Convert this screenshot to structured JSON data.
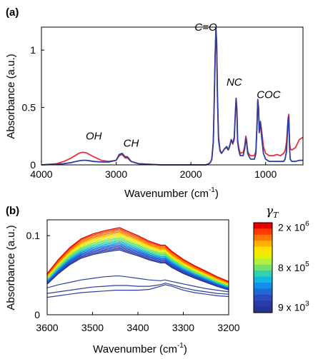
{
  "chart_data": [
    {
      "panel": "(a)",
      "type": "line",
      "xlabel": "Wavenumber (cm",
      "xlabel_sup": "-1",
      "xlabel_close": ")",
      "ylabel": "Absorbance (a.u.)",
      "xlim": [
        4000,
        500
      ],
      "ylim": [
        0,
        1.2
      ],
      "x_ticks": [
        4000,
        3000,
        2000,
        1000
      ],
      "x_tick_labels": [
        "4000",
        "3000",
        "2000",
        "1000"
      ],
      "y_ticks": [
        0,
        0.5,
        1
      ],
      "y_tick_labels": [
        "0",
        "0.5",
        "1"
      ],
      "annotations": [
        {
          "text": "OH",
          "x": 3300,
          "y": 0.22
        },
        {
          "text": "CH",
          "x": 2800,
          "y": 0.16
        },
        {
          "text": "C=O",
          "x": 1800,
          "y": 1.17
        },
        {
          "text": "NC",
          "x": 1420,
          "y": 0.69
        },
        {
          "text": "COC",
          "x": 960,
          "y": 0.58
        }
      ],
      "series": [
        {
          "color": "#e8303a",
          "x": [
            4000,
            3800,
            3700,
            3600,
            3500,
            3450,
            3400,
            3300,
            3200,
            3100,
            3000,
            2960,
            2920,
            2880,
            2850,
            2800,
            2700,
            2400,
            2000,
            1800,
            1760,
            1740,
            1720,
            1700,
            1690,
            1675,
            1665,
            1655,
            1645,
            1630,
            1610,
            1590,
            1570,
            1550,
            1520,
            1500,
            1480,
            1460,
            1450,
            1440,
            1420,
            1405,
            1395,
            1385,
            1375,
            1360,
            1340,
            1300,
            1280,
            1265,
            1255,
            1240,
            1220,
            1200,
            1180,
            1150,
            1130,
            1115,
            1105,
            1095,
            1085,
            1070,
            1050,
            1030,
            1000,
            950,
            900,
            850,
            800,
            760,
            740,
            720,
            700,
            690,
            680,
            670,
            650,
            600,
            550,
            500
          ],
          "y": [
            0.0,
            0.01,
            0.03,
            0.06,
            0.1,
            0.11,
            0.105,
            0.07,
            0.04,
            0.03,
            0.04,
            0.08,
            0.09,
            0.06,
            0.06,
            0.03,
            0.01,
            0.0,
            0.0,
            0.0,
            0.01,
            0.02,
            0.05,
            0.2,
            0.5,
            0.95,
            1.17,
            1.05,
            0.6,
            0.25,
            0.13,
            0.1,
            0.12,
            0.14,
            0.15,
            0.13,
            0.16,
            0.22,
            0.2,
            0.18,
            0.22,
            0.45,
            0.57,
            0.48,
            0.22,
            0.15,
            0.1,
            0.11,
            0.16,
            0.25,
            0.22,
            0.12,
            0.09,
            0.08,
            0.08,
            0.08,
            0.12,
            0.35,
            0.55,
            0.5,
            0.3,
            0.38,
            0.28,
            0.16,
            0.1,
            0.08,
            0.08,
            0.09,
            0.08,
            0.1,
            0.12,
            0.2,
            0.4,
            0.44,
            0.2,
            0.14,
            0.13,
            0.15,
            0.22,
            0.24
          ]
        },
        {
          "color": "#2d3f9e",
          "x": [
            4000,
            3800,
            3700,
            3600,
            3500,
            3450,
            3400,
            3300,
            3200,
            3100,
            3000,
            2960,
            2920,
            2880,
            2850,
            2800,
            2700,
            2400,
            2000,
            1800,
            1760,
            1740,
            1720,
            1700,
            1690,
            1675,
            1665,
            1655,
            1645,
            1630,
            1610,
            1590,
            1570,
            1550,
            1520,
            1500,
            1480,
            1460,
            1450,
            1440,
            1420,
            1405,
            1395,
            1385,
            1375,
            1360,
            1340,
            1300,
            1280,
            1265,
            1255,
            1240,
            1220,
            1200,
            1180,
            1150,
            1130,
            1115,
            1105,
            1095,
            1085,
            1070,
            1050,
            1030,
            1000,
            950,
            900,
            850,
            800,
            760,
            740,
            720,
            700,
            690,
            680,
            670,
            650,
            600,
            550,
            500
          ],
          "y": [
            0.0,
            0.005,
            0.01,
            0.02,
            0.035,
            0.04,
            0.04,
            0.03,
            0.025,
            0.025,
            0.04,
            0.09,
            0.1,
            0.07,
            0.07,
            0.03,
            0.01,
            0.0,
            0.0,
            0.0,
            0.01,
            0.02,
            0.05,
            0.2,
            0.5,
            0.96,
            1.2,
            1.07,
            0.6,
            0.22,
            0.12,
            0.1,
            0.12,
            0.14,
            0.16,
            0.13,
            0.17,
            0.22,
            0.2,
            0.19,
            0.24,
            0.46,
            0.58,
            0.48,
            0.2,
            0.13,
            0.08,
            0.08,
            0.14,
            0.23,
            0.2,
            0.1,
            0.07,
            0.05,
            0.05,
            0.05,
            0.1,
            0.36,
            0.57,
            0.5,
            0.28,
            0.37,
            0.22,
            0.1,
            0.05,
            0.03,
            0.03,
            0.03,
            0.03,
            0.03,
            0.05,
            0.12,
            0.38,
            0.42,
            0.15,
            0.05,
            0.03,
            0.03,
            0.04,
            0.04
          ]
        }
      ]
    },
    {
      "panel": "(b)",
      "type": "line",
      "xlabel": "Wavenumber (cm",
      "xlabel_sup": "-1",
      "xlabel_close": ")",
      "ylabel": "Absorbance (a.u.)",
      "xlim": [
        3600,
        3200
      ],
      "ylim": [
        0,
        0.12
      ],
      "x_ticks": [
        3600,
        3500,
        3400,
        3300,
        3200
      ],
      "x_tick_labels": [
        "3600",
        "3500",
        "3400",
        "3300",
        "3200"
      ],
      "y_ticks": [
        0,
        0.1
      ],
      "y_tick_labels": [
        "0",
        "0.1"
      ],
      "x": [
        3600,
        3575,
        3550,
        3525,
        3500,
        3475,
        3450,
        3440,
        3425,
        3400,
        3375,
        3350,
        3340,
        3325,
        3300,
        3275,
        3250,
        3225,
        3200
      ],
      "top_profile": [
        0.052,
        0.07,
        0.085,
        0.096,
        0.102,
        0.106,
        0.109,
        0.11,
        0.106,
        0.1,
        0.093,
        0.088,
        0.088,
        0.08,
        0.07,
        0.062,
        0.055,
        0.048,
        0.042
      ],
      "scales": [
        1.0,
        0.985,
        0.97,
        0.955,
        0.94,
        0.925,
        0.91,
        0.895,
        0.88,
        0.865,
        0.85,
        0.835,
        0.82,
        0.805,
        0.79,
        0.775,
        0.76,
        0.745
      ],
      "low_series": [
        {
          "y": [
            0.034,
            0.038,
            0.041,
            0.044,
            0.046,
            0.048,
            0.049,
            0.049,
            0.048,
            0.046,
            0.044,
            0.043,
            0.044,
            0.042,
            0.039,
            0.036,
            0.033,
            0.031,
            0.029
          ]
        },
        {
          "y": [
            0.027,
            0.029,
            0.031,
            0.033,
            0.035,
            0.036,
            0.037,
            0.037,
            0.037,
            0.036,
            0.036,
            0.038,
            0.04,
            0.038,
            0.034,
            0.031,
            0.029,
            0.027,
            0.026
          ]
        },
        {
          "y": [
            0.022,
            0.024,
            0.026,
            0.028,
            0.029,
            0.03,
            0.031,
            0.031,
            0.031,
            0.031,
            0.032,
            0.036,
            0.038,
            0.036,
            0.031,
            0.028,
            0.026,
            0.024,
            0.023
          ]
        }
      ],
      "colorbar": {
        "title": "γ",
        "title_sub": "T",
        "ticks": [
          {
            "base": "2 x 10",
            "exp": "6",
            "frac": 0.95
          },
          {
            "base": "8 x 10",
            "exp": "5",
            "frac": 0.5
          },
          {
            "base": "9 x 10",
            "exp": "3",
            "frac": 0.06
          }
        ],
        "colors": [
          "#e50000",
          "#ff3b00",
          "#ff7800",
          "#ffb000",
          "#ffe000",
          "#e8f000",
          "#b0f040",
          "#70e070",
          "#30d0b0",
          "#10b8e0",
          "#1090e8",
          "#2068d8",
          "#2a4cc0",
          "#2a3aa8",
          "#26338f"
        ]
      }
    }
  ]
}
